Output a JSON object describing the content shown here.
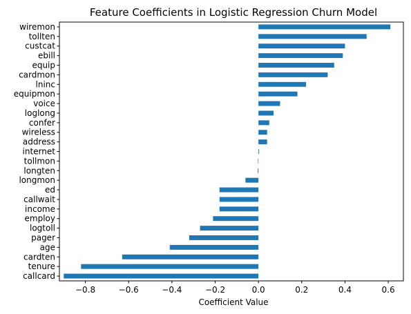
{
  "chart_data": {
    "type": "bar",
    "orientation": "horizontal",
    "title": "Feature Coefficients in Logistic Regression Churn Model",
    "xlabel": "Coefficient Value",
    "ylabel": "",
    "xlim": [
      -0.92,
      0.67
    ],
    "xticks": [
      -0.8,
      -0.6,
      -0.4,
      -0.2,
      0.0,
      0.2,
      0.4,
      0.6
    ],
    "xtick_labels": [
      "−0.8",
      "−0.6",
      "−0.4",
      "−0.2",
      "0.0",
      "0.2",
      "0.4",
      "0.6"
    ],
    "grid": false,
    "bar_color": "#1f77b4",
    "categories": [
      "wiremon",
      "tollten",
      "custcat",
      "ebill",
      "equip",
      "cardmon",
      "lninc",
      "equipmon",
      "voice",
      "loglong",
      "confer",
      "wireless",
      "address",
      "internet",
      "tollmon",
      "longten",
      "longmon",
      "ed",
      "callwait",
      "income",
      "employ",
      "logtoll",
      "pager",
      "age",
      "cardten",
      "tenure",
      "callcard"
    ],
    "values": [
      0.61,
      0.5,
      0.4,
      0.39,
      0.35,
      0.32,
      0.22,
      0.18,
      0.1,
      0.07,
      0.05,
      0.04,
      0.04,
      0.003,
      -0.002,
      -0.003,
      -0.06,
      -0.18,
      -0.18,
      -0.18,
      -0.21,
      -0.27,
      -0.32,
      -0.41,
      -0.63,
      -0.82,
      -0.9
    ]
  }
}
